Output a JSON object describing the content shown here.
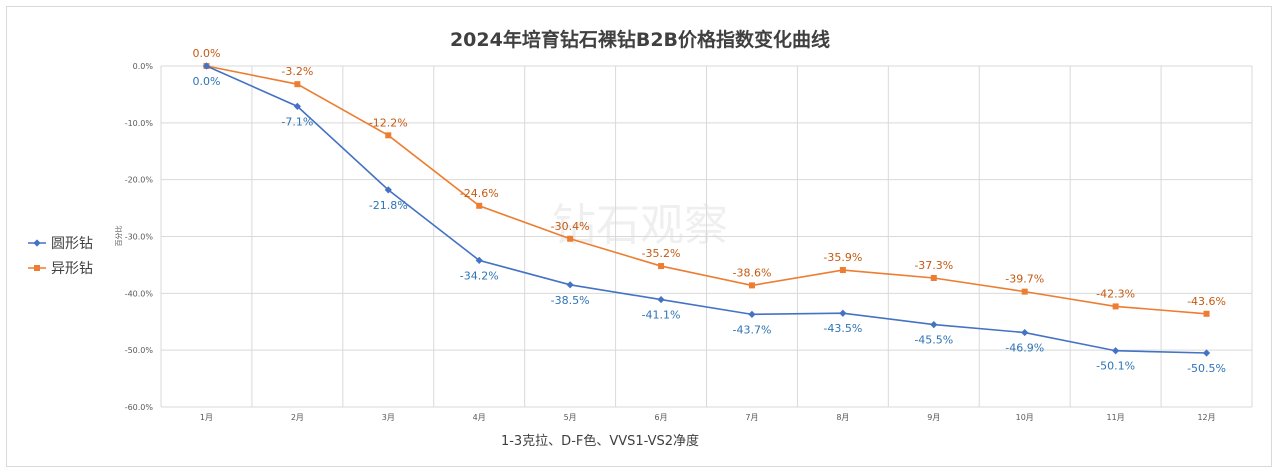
{
  "chart_data": {
    "type": "line",
    "title": "2024年培育钻石裸钻B2B价格指数变化曲线",
    "xlabel": "1-3克拉、D-F色、VVS1-VS2净度",
    "ylabel": "百分比",
    "categories": [
      "1月",
      "2月",
      "3月",
      "4月",
      "5月",
      "6月",
      "7月",
      "8月",
      "9月",
      "10月",
      "11月",
      "12月"
    ],
    "ylim": [
      -60,
      0
    ],
    "yticks": [
      0,
      -10,
      -20,
      -30,
      -40,
      -50,
      -60
    ],
    "ytick_labels": [
      "0.0%",
      "-10.0%",
      "-20.0%",
      "-30.0%",
      "-40.0%",
      "-50.0%",
      "-60.0%"
    ],
    "grid": true,
    "legend_position": "left",
    "series": [
      {
        "name": "圆形钻",
        "color": "#4472c4",
        "marker": "diamond",
        "values": [
          0.0,
          -7.1,
          -21.8,
          -34.2,
          -38.5,
          -41.1,
          -43.7,
          -43.5,
          -45.5,
          -46.9,
          -50.1,
          -50.5
        ],
        "labels": [
          "0.0%",
          "-7.1%",
          "-21.8%",
          "-34.2%",
          "-38.5%",
          "-41.1%",
          "-43.7%",
          "-43.5%",
          "-45.5%",
          "-46.9%",
          "-50.1%",
          "-50.5%"
        ],
        "label_color": "#2e74b5",
        "label_position": "below"
      },
      {
        "name": "异形钻",
        "color": "#ed7d31",
        "marker": "square",
        "values": [
          0.0,
          -3.2,
          -12.2,
          -24.6,
          -30.4,
          -35.2,
          -38.6,
          -35.9,
          -37.3,
          -39.7,
          -42.3,
          -43.6
        ],
        "labels": [
          "0.0%",
          "-3.2%",
          "-12.2%",
          "-24.6%",
          "-30.4%",
          "-35.2%",
          "-38.6%",
          "-35.9%",
          "-37.3%",
          "-39.7%",
          "-42.3%",
          "-43.6%"
        ],
        "label_color": "#c55a11",
        "label_position": "above"
      }
    ],
    "watermark": "钻石观察"
  }
}
